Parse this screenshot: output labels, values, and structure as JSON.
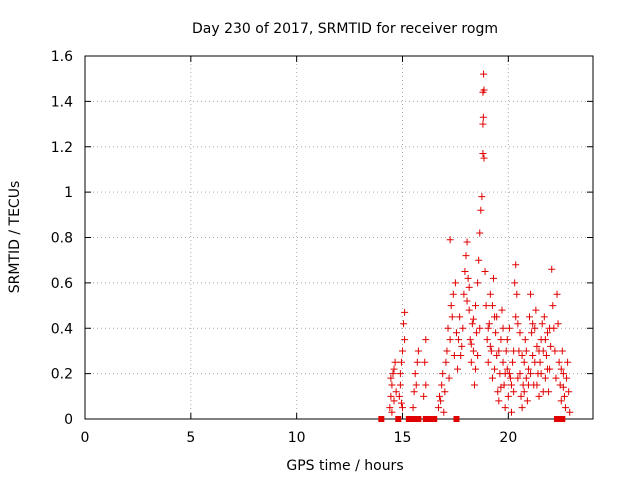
{
  "chart_data": {
    "type": "scatter",
    "title": "Day 230 of 2017, SRMTID for receiver rogm",
    "xlabel": "GPS time / hours",
    "ylabel": "SRMTID / TECUs",
    "xlim": [
      0,
      24
    ],
    "ylim": [
      0,
      1.6
    ],
    "x_ticks": [
      0,
      5,
      10,
      15,
      20
    ],
    "x_tick_labels": [
      "0",
      "5",
      "10",
      "15",
      "20"
    ],
    "y_ticks": [
      0,
      0.2,
      0.4,
      0.6,
      0.8,
      1.0,
      1.2,
      1.4,
      1.6
    ],
    "y_tick_labels": [
      "0",
      "0.2",
      "0.4",
      "0.6",
      "0.8",
      "1",
      "1.2",
      "1.4",
      "1.6"
    ],
    "grid": true,
    "marker": "+",
    "color": "#e00000",
    "series": [
      {
        "values": [
          [
            14.4,
            0.05
          ],
          [
            14.45,
            0.1
          ],
          [
            14.5,
            0.15
          ],
          [
            14.55,
            0.2
          ],
          [
            14.6,
            0.08
          ],
          [
            14.65,
            0.25
          ],
          [
            14.7,
            0.12
          ],
          [
            14.5,
            0.03
          ],
          [
            14.45,
            0.18
          ],
          [
            14.6,
            0.22
          ],
          [
            14.9,
            0.2
          ],
          [
            14.95,
            0.25
          ],
          [
            15.0,
            0.3
          ],
          [
            15.05,
            0.42
          ],
          [
            15.1,
            0.47
          ],
          [
            14.85,
            0.1
          ],
          [
            14.9,
            0.15
          ],
          [
            15.0,
            0.05
          ],
          [
            15.1,
            0.35
          ],
          [
            14.95,
            0.07
          ],
          [
            15.5,
            0.05
          ],
          [
            15.55,
            0.12
          ],
          [
            15.6,
            0.2
          ],
          [
            15.7,
            0.25
          ],
          [
            15.65,
            0.15
          ],
          [
            15.75,
            0.3
          ],
          [
            16.0,
            0.1
          ],
          [
            16.05,
            0.25
          ],
          [
            16.1,
            0.35
          ],
          [
            16.1,
            0.15
          ],
          [
            16.7,
            0.05
          ],
          [
            16.75,
            0.1
          ],
          [
            16.8,
            0.08
          ],
          [
            16.85,
            0.15
          ],
          [
            16.9,
            0.2
          ],
          [
            16.95,
            0.03
          ],
          [
            17.0,
            0.12
          ],
          [
            17.05,
            0.25
          ],
          [
            17.1,
            0.3
          ],
          [
            17.15,
            0.4
          ],
          [
            17.2,
            0.18
          ],
          [
            17.25,
            0.35
          ],
          [
            17.3,
            0.5
          ],
          [
            17.35,
            0.45
          ],
          [
            17.4,
            0.55
          ],
          [
            17.45,
            0.28
          ],
          [
            17.5,
            0.6
          ],
          [
            17.55,
            0.38
          ],
          [
            17.6,
            0.22
          ],
          [
            17.25,
            0.79
          ],
          [
            17.8,
            0.32
          ],
          [
            17.85,
            0.4
          ],
          [
            17.9,
            0.55
          ],
          [
            17.95,
            0.65
          ],
          [
            18.0,
            0.72
          ],
          [
            18.05,
            0.78
          ],
          [
            18.1,
            0.62
          ],
          [
            18.15,
            0.48
          ],
          [
            18.2,
            0.35
          ],
          [
            18.25,
            0.25
          ],
          [
            18.3,
            0.42
          ],
          [
            18.35,
            0.3
          ],
          [
            18.4,
            0.15
          ],
          [
            18.45,
            0.5
          ],
          [
            18.5,
            0.38
          ],
          [
            18.55,
            0.6
          ],
          [
            18.6,
            0.7
          ],
          [
            18.65,
            0.82
          ],
          [
            18.7,
            0.92
          ],
          [
            18.75,
            0.98
          ],
          [
            18.8,
            1.17
          ],
          [
            18.85,
            1.15
          ],
          [
            18.8,
            1.3
          ],
          [
            18.82,
            1.33
          ],
          [
            18.85,
            1.45
          ],
          [
            18.8,
            1.44
          ],
          [
            18.83,
            1.52
          ],
          [
            18.9,
            0.65
          ],
          [
            18.95,
            0.5
          ],
          [
            19.0,
            0.35
          ],
          [
            19.05,
            0.25
          ],
          [
            19.1,
            0.42
          ],
          [
            19.15,
            0.55
          ],
          [
            19.2,
            0.3
          ],
          [
            19.25,
            0.18
          ],
          [
            19.3,
            0.62
          ],
          [
            19.35,
            0.45
          ],
          [
            19.4,
            0.38
          ],
          [
            19.45,
            0.28
          ],
          [
            19.5,
            0.12
          ],
          [
            19.55,
            0.08
          ],
          [
            19.6,
            0.2
          ],
          [
            19.65,
            0.35
          ],
          [
            19.7,
            0.48
          ],
          [
            19.75,
            0.25
          ],
          [
            19.8,
            0.15
          ],
          [
            19.85,
            0.05
          ],
          [
            19.9,
            0.3
          ],
          [
            19.95,
            0.22
          ],
          [
            20.0,
            0.1
          ],
          [
            20.05,
            0.4
          ],
          [
            20.1,
            0.18
          ],
          [
            20.15,
            0.03
          ],
          [
            20.2,
            0.25
          ],
          [
            20.25,
            0.12
          ],
          [
            20.3,
            0.6
          ],
          [
            20.35,
            0.68
          ],
          [
            20.4,
            0.55
          ],
          [
            20.45,
            0.42
          ],
          [
            20.5,
            0.3
          ],
          [
            20.55,
            0.2
          ],
          [
            20.6,
            0.1
          ],
          [
            20.65,
            0.05
          ],
          [
            20.7,
            0.15
          ],
          [
            20.75,
            0.25
          ],
          [
            20.8,
            0.35
          ],
          [
            20.85,
            0.18
          ],
          [
            20.9,
            0.08
          ],
          [
            20.95,
            0.22
          ],
          [
            21.0,
            0.45
          ],
          [
            21.05,
            0.55
          ],
          [
            21.1,
            0.38
          ],
          [
            21.15,
            0.28
          ],
          [
            21.2,
            0.15
          ],
          [
            21.25,
            0.4
          ],
          [
            21.3,
            0.48
          ],
          [
            21.35,
            0.32
          ],
          [
            21.4,
            0.2
          ],
          [
            21.45,
            0.1
          ],
          [
            21.5,
            0.25
          ],
          [
            21.55,
            0.35
          ],
          [
            21.6,
            0.42
          ],
          [
            21.65,
            0.3
          ],
          [
            21.7,
            0.45
          ],
          [
            21.75,
            0.18
          ],
          [
            21.8,
            0.28
          ],
          [
            21.85,
            0.38
          ],
          [
            21.9,
            0.12
          ],
          [
            21.95,
            0.22
          ],
          [
            22.0,
            0.32
          ],
          [
            22.05,
            0.66
          ],
          [
            22.1,
            0.5
          ],
          [
            22.15,
            0.4
          ],
          [
            22.2,
            0.3
          ],
          [
            22.25,
            0.18
          ],
          [
            22.3,
            0.55
          ],
          [
            22.35,
            0.42
          ],
          [
            22.4,
            0.25
          ],
          [
            22.45,
            0.15
          ],
          [
            22.5,
            0.22
          ],
          [
            22.55,
            0.3
          ],
          [
            22.6,
            0.2
          ],
          [
            22.65,
            0.1
          ],
          [
            22.7,
            0.05
          ],
          [
            22.75,
            0.18
          ],
          [
            22.8,
            0.25
          ],
          [
            22.85,
            0.12
          ],
          [
            22.9,
            0.03
          ],
          [
            22.5,
            0.08
          ],
          [
            22.6,
            0.14
          ],
          [
            17.65,
            0.35
          ],
          [
            17.7,
            0.45
          ],
          [
            17.75,
            0.28
          ],
          [
            18.05,
            0.52
          ],
          [
            18.15,
            0.58
          ],
          [
            18.25,
            0.33
          ],
          [
            18.35,
            0.44
          ],
          [
            18.45,
            0.22
          ],
          [
            18.55,
            0.28
          ],
          [
            18.65,
            0.4
          ],
          [
            19.05,
            0.4
          ],
          [
            19.15,
            0.32
          ],
          [
            19.25,
            0.5
          ],
          [
            19.35,
            0.22
          ],
          [
            19.45,
            0.45
          ],
          [
            19.55,
            0.3
          ],
          [
            19.65,
            0.14
          ],
          [
            19.75,
            0.4
          ],
          [
            19.85,
            0.2
          ],
          [
            19.95,
            0.35
          ],
          [
            20.05,
            0.2
          ],
          [
            20.15,
            0.15
          ],
          [
            20.25,
            0.3
          ],
          [
            20.35,
            0.45
          ],
          [
            20.45,
            0.18
          ],
          [
            20.55,
            0.38
          ],
          [
            20.65,
            0.28
          ],
          [
            20.75,
            0.12
          ],
          [
            20.85,
            0.3
          ],
          [
            20.95,
            0.15
          ],
          [
            21.05,
            0.2
          ],
          [
            21.15,
            0.42
          ],
          [
            21.25,
            0.25
          ],
          [
            21.35,
            0.15
          ],
          [
            21.45,
            0.3
          ],
          [
            21.55,
            0.2
          ],
          [
            21.65,
            0.12
          ],
          [
            21.75,
            0.35
          ],
          [
            21.85,
            0.22
          ],
          [
            21.95,
            0.4
          ]
        ]
      }
    ],
    "baseline_markers": [
      14.0,
      14.8,
      15.3,
      15.45,
      15.6,
      15.75,
      16.1,
      16.35,
      16.5,
      17.55,
      22.3,
      22.55
    ],
    "baseline_y": 0
  }
}
